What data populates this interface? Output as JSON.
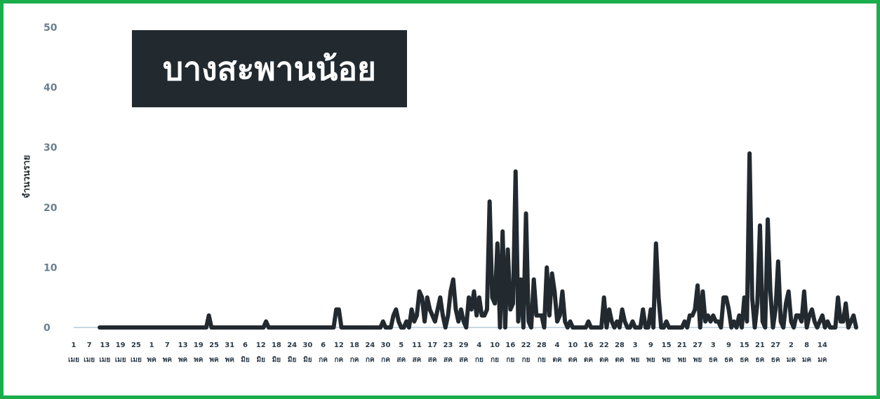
{
  "chart_data": {
    "type": "line",
    "title": "บางสะพานน้อย",
    "ylabel": "จำนวนราย",
    "ylim": [
      0,
      50
    ],
    "yticks": [
      0,
      10,
      20,
      30,
      40,
      50
    ],
    "grid": false,
    "line_color": "#222a30",
    "x_tick_labels": [
      {
        "day": "1",
        "month": "เมย"
      },
      {
        "day": "7",
        "month": "เมย"
      },
      {
        "day": "13",
        "month": "เมย"
      },
      {
        "day": "19",
        "month": "เมย"
      },
      {
        "day": "25",
        "month": "เมย"
      },
      {
        "day": "1",
        "month": "พค"
      },
      {
        "day": "7",
        "month": "พค"
      },
      {
        "day": "13",
        "month": "พค"
      },
      {
        "day": "19",
        "month": "พค"
      },
      {
        "day": "25",
        "month": "พค"
      },
      {
        "day": "31",
        "month": "พค"
      },
      {
        "day": "6",
        "month": "มิย"
      },
      {
        "day": "12",
        "month": "มิย"
      },
      {
        "day": "18",
        "month": "มิย"
      },
      {
        "day": "24",
        "month": "มิย"
      },
      {
        "day": "30",
        "month": "มิย"
      },
      {
        "day": "6",
        "month": "กค"
      },
      {
        "day": "12",
        "month": "กค"
      },
      {
        "day": "18",
        "month": "กค"
      },
      {
        "day": "24",
        "month": "กค"
      },
      {
        "day": "30",
        "month": "กค"
      },
      {
        "day": "5",
        "month": "สค"
      },
      {
        "day": "11",
        "month": "สค"
      },
      {
        "day": "17",
        "month": "สค"
      },
      {
        "day": "23",
        "month": "สค"
      },
      {
        "day": "29",
        "month": "สค"
      },
      {
        "day": "4",
        "month": "กย"
      },
      {
        "day": "10",
        "month": "กย"
      },
      {
        "day": "16",
        "month": "กย"
      },
      {
        "day": "22",
        "month": "กย"
      },
      {
        "day": "28",
        "month": "กย"
      },
      {
        "day": "4",
        "month": "ตค"
      },
      {
        "day": "10",
        "month": "ตค"
      },
      {
        "day": "16",
        "month": "ตค"
      },
      {
        "day": "22",
        "month": "ตค"
      },
      {
        "day": "28",
        "month": "ตค"
      },
      {
        "day": "3",
        "month": "พย"
      },
      {
        "day": "9",
        "month": "พย"
      },
      {
        "day": "15",
        "month": "พย"
      },
      {
        "day": "21",
        "month": "พย"
      },
      {
        "day": "27",
        "month": "พย"
      },
      {
        "day": "3",
        "month": "ธค"
      },
      {
        "day": "9",
        "month": "ธค"
      },
      {
        "day": "15",
        "month": "ธค"
      },
      {
        "day": "21",
        "month": "ธค"
      },
      {
        "day": "27",
        "month": "ธค"
      },
      {
        "day": "2",
        "month": "มค"
      },
      {
        "day": "8",
        "month": "มค"
      },
      {
        "day": "14",
        "month": "มค"
      }
    ],
    "x_tick_step_days": 6,
    "series": [
      {
        "values": [
          0,
          0,
          0,
          0,
          0,
          0,
          0,
          0,
          0,
          0,
          0,
          0,
          0,
          0,
          0,
          0,
          0,
          0,
          0,
          0,
          0,
          0,
          0,
          0,
          0,
          0,
          0,
          0,
          0,
          0,
          0,
          0,
          0,
          0,
          0,
          0,
          0,
          0,
          0,
          0,
          0,
          0,
          0,
          0,
          0,
          0,
          0,
          0,
          0,
          0,
          0,
          0,
          2,
          0,
          0,
          0,
          0,
          0,
          0,
          0,
          0,
          0,
          0,
          0,
          0,
          0,
          0,
          0,
          0,
          0,
          0,
          0,
          0,
          0,
          1,
          0,
          0,
          0,
          0,
          0,
          0,
          0,
          0,
          0,
          0,
          0,
          0,
          0,
          0,
          0,
          0,
          0,
          0,
          0,
          0,
          0,
          0,
          0,
          0,
          0,
          0,
          3,
          3,
          0,
          0,
          0,
          0,
          0,
          0,
          0,
          0,
          0,
          0,
          0,
          0,
          0,
          0,
          0,
          0,
          1,
          0,
          0,
          0,
          2,
          3,
          1,
          0,
          0,
          1,
          0,
          3,
          1,
          2,
          6,
          5,
          1,
          5,
          3,
          2,
          1,
          3,
          5,
          2,
          0,
          2,
          6,
          8,
          3,
          1,
          3,
          1,
          0,
          5,
          3,
          6,
          2,
          5,
          2,
          2,
          3,
          21,
          5,
          4,
          14,
          0,
          16,
          0,
          13,
          3,
          4,
          26,
          1,
          8,
          0,
          19,
          1,
          0,
          8,
          2,
          2,
          2,
          0,
          10,
          2,
          9,
          6,
          1,
          2,
          6,
          1,
          0,
          1,
          0,
          0,
          0,
          0,
          0,
          0,
          1,
          0,
          0,
          0,
          0,
          0,
          5,
          0,
          3,
          1,
          0,
          1,
          0,
          3,
          1,
          0,
          0,
          1,
          0,
          0,
          0,
          3,
          0,
          0,
          3,
          0,
          14,
          5,
          0,
          0,
          1,
          0,
          0,
          0,
          0,
          0,
          0,
          1,
          0,
          2,
          2,
          3,
          7,
          0,
          6,
          1,
          2,
          1,
          2,
          1,
          1,
          0,
          5,
          5,
          3,
          0,
          1,
          0,
          2,
          0,
          5,
          1,
          29,
          5,
          0,
          4,
          17,
          1,
          0,
          18,
          6,
          0,
          3,
          11,
          1,
          0,
          4,
          6,
          1,
          0,
          2,
          2,
          1,
          6,
          0,
          2,
          3,
          1,
          0,
          1,
          2,
          0,
          1,
          0,
          0,
          0,
          5,
          1,
          1,
          4,
          0,
          1,
          2,
          0
        ]
      }
    ]
  }
}
